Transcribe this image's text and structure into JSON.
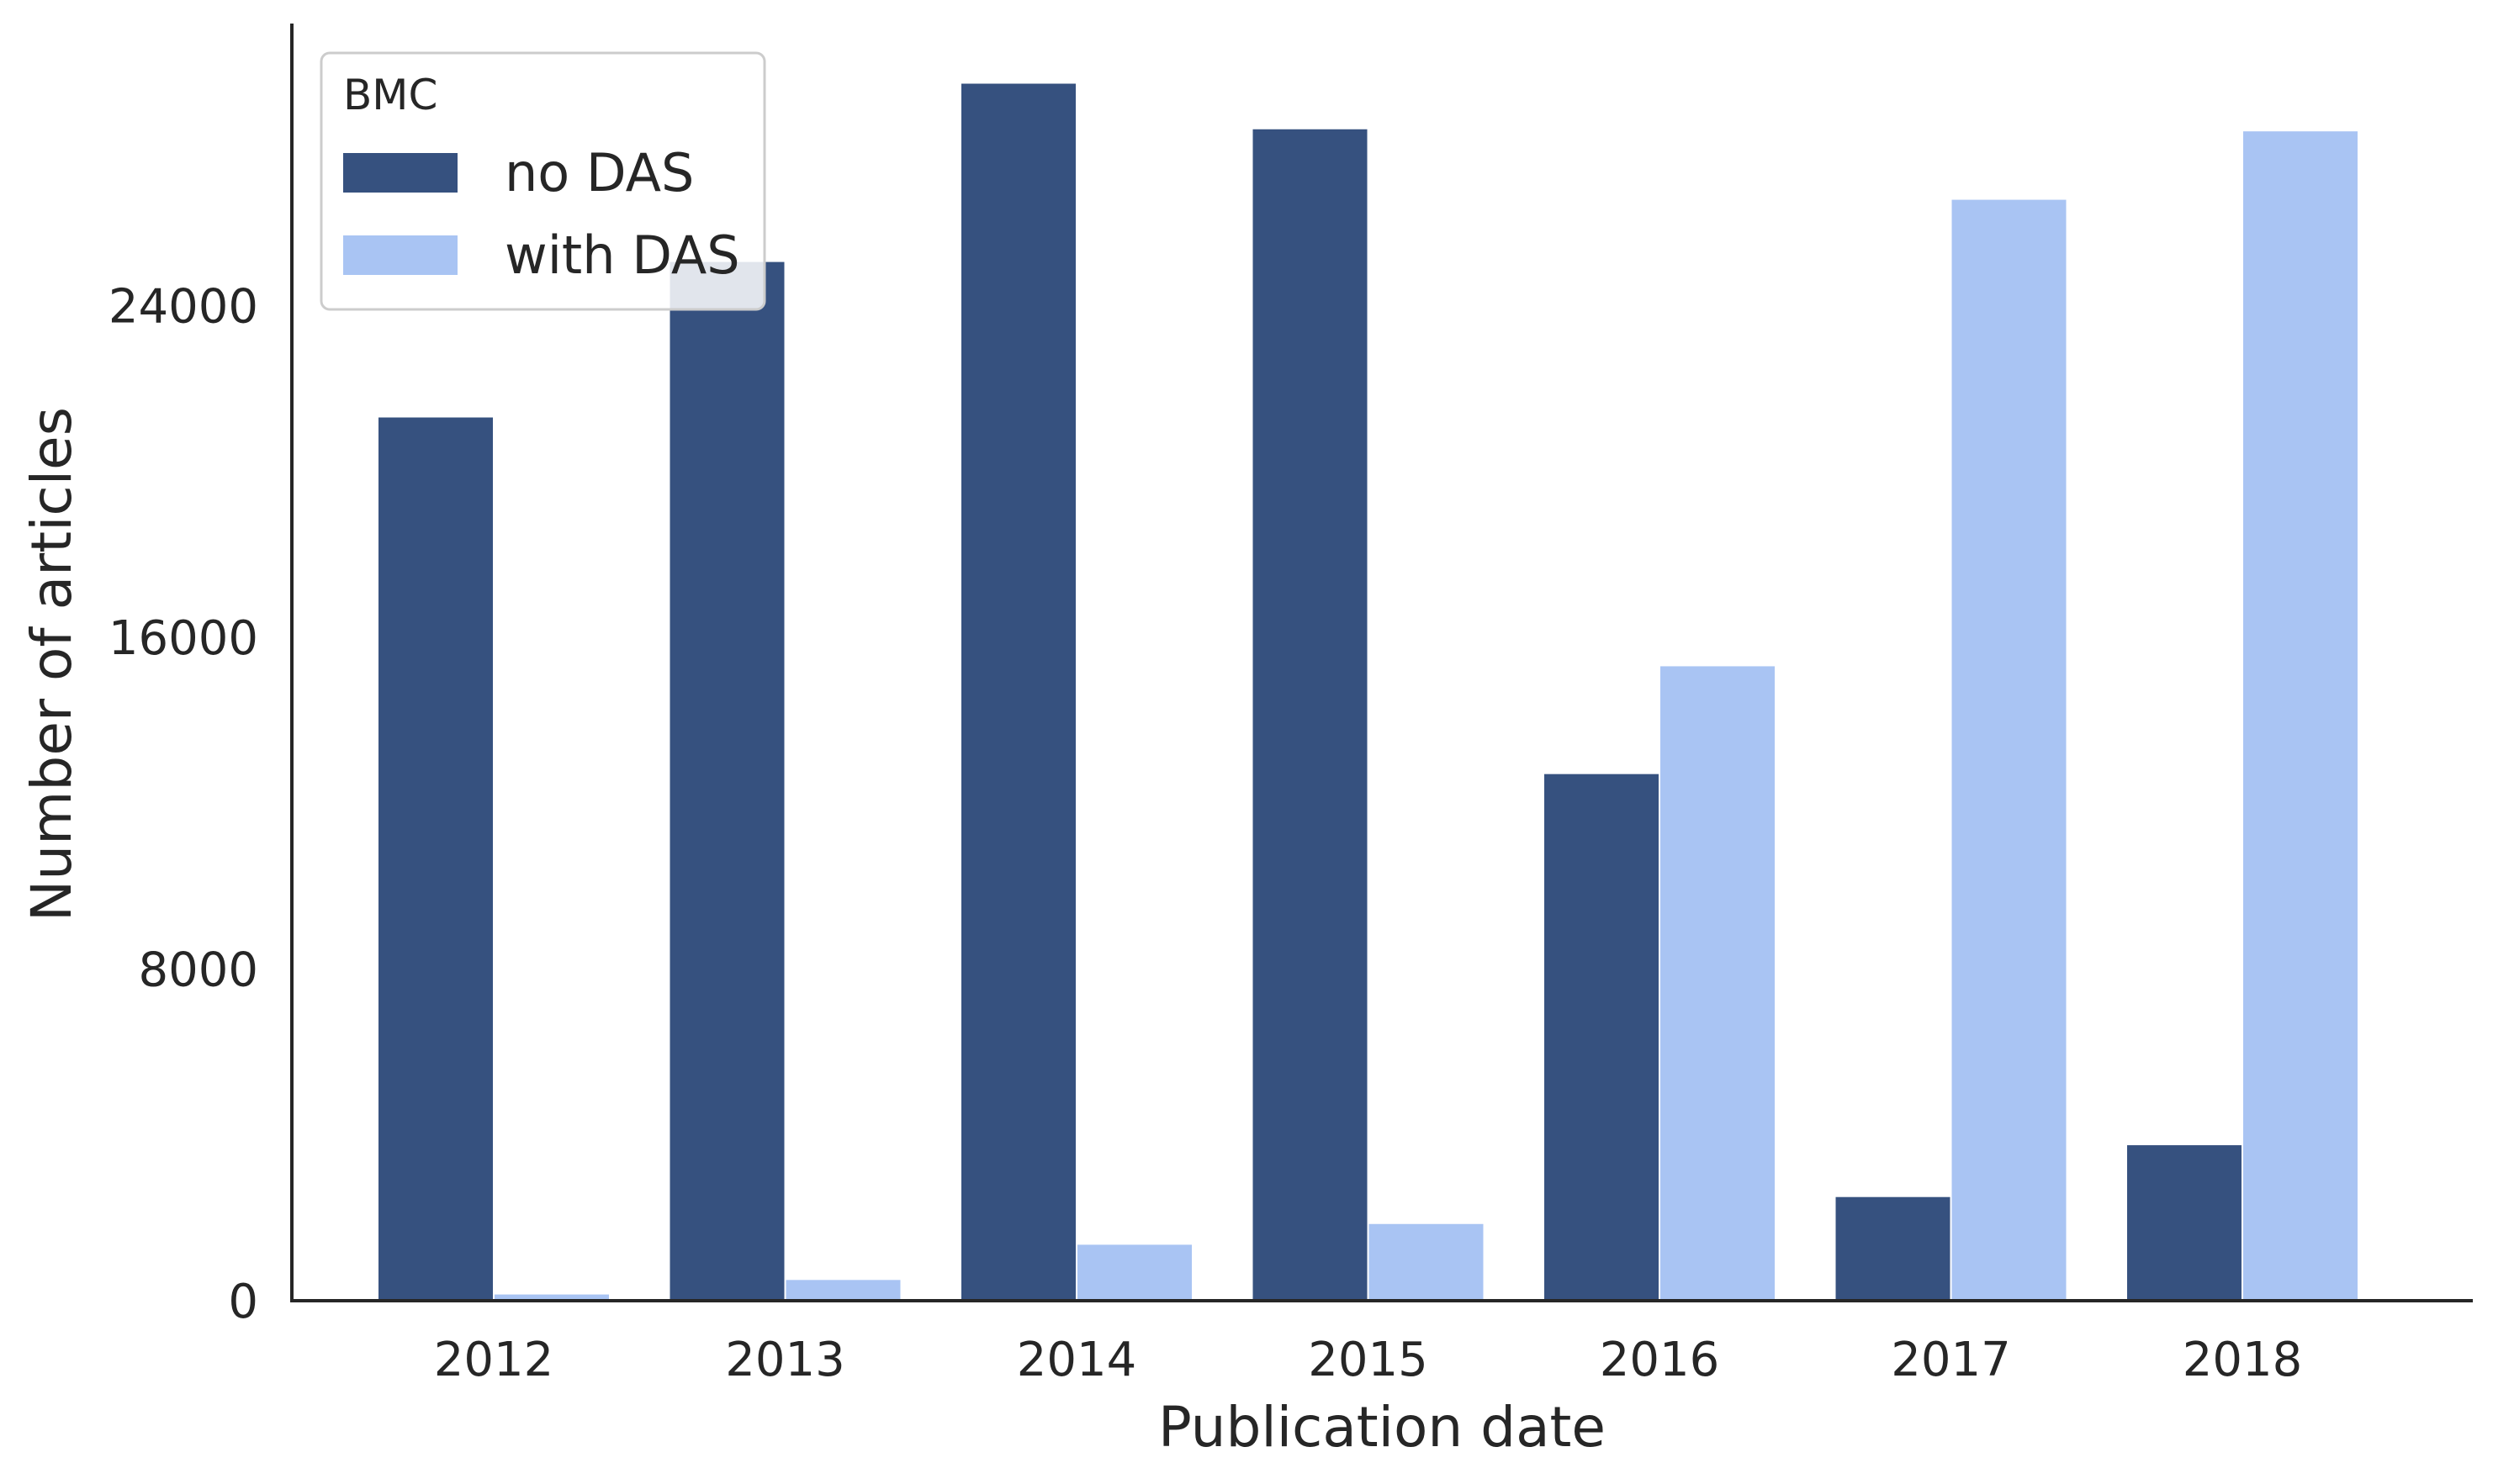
{
  "chart_data": {
    "type": "bar",
    "categories": [
      "2012",
      "2013",
      "2014",
      "2015",
      "2016",
      "2017",
      "2018"
    ],
    "series": [
      {
        "name": "no DAS",
        "color": "#36517f",
        "values": [
          21300,
          25050,
          29350,
          28250,
          12700,
          2500,
          3750
        ]
      },
      {
        "name": "with DAS",
        "color": "#a9c4f3",
        "values": [
          150,
          500,
          1350,
          1850,
          15300,
          26550,
          28200
        ]
      }
    ],
    "xlabel": "Publication date",
    "ylabel": "Number of articles",
    "ylim": [
      0,
      30800
    ],
    "yticks": [
      0,
      8000,
      16000,
      24000
    ],
    "grid": false,
    "legend": {
      "title": "BMC",
      "placement": "top-left"
    }
  }
}
